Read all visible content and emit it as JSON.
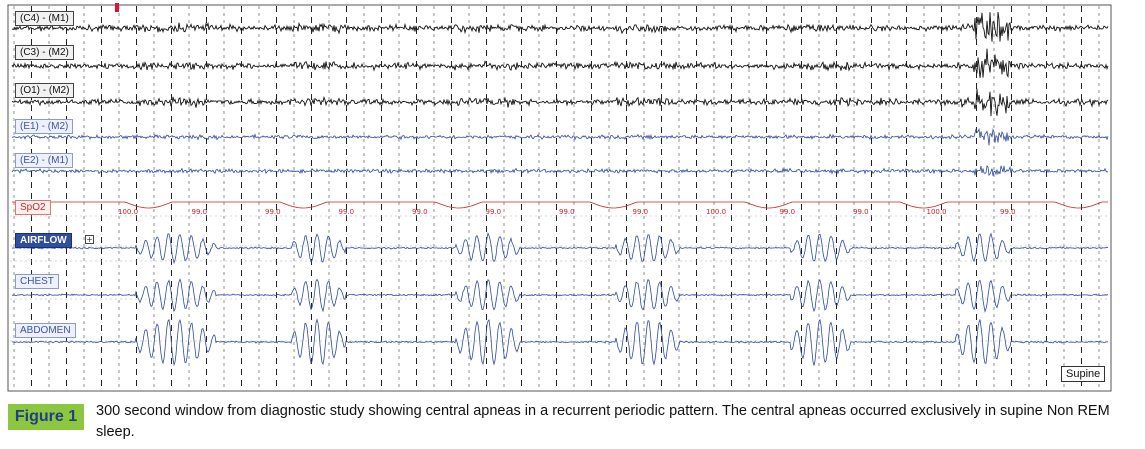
{
  "figure": {
    "label": "Figure 1",
    "caption": "300 second window from diagnostic study showing central apneas in a recurrent periodic pattern. The central apneas occurred exclusively in supine Non REM sleep."
  },
  "channels": [
    {
      "key": "c4",
      "label": "(C4) - (M1)",
      "style": "black",
      "type": "eeg"
    },
    {
      "key": "c3",
      "label": "(C3) - (M2)",
      "style": "black",
      "type": "eeg"
    },
    {
      "key": "o1",
      "label": "(O1) - (M2)",
      "style": "black",
      "type": "eeg"
    },
    {
      "key": "e1",
      "label": "(E1) - (M2)",
      "style": "blue",
      "type": "eog"
    },
    {
      "key": "e2",
      "label": "(E2) - (M1)",
      "style": "blue",
      "type": "eog"
    },
    {
      "key": "spo2",
      "label": "SpO2",
      "style": "red",
      "type": "spo2"
    },
    {
      "key": "airflow",
      "label": "AIRFLOW",
      "style": "dark",
      "type": "resp"
    },
    {
      "key": "chest",
      "label": "CHEST",
      "style": "blue",
      "type": "resp"
    },
    {
      "key": "abdomen",
      "label": "ABDOMEN",
      "style": "blue",
      "type": "resp"
    }
  ],
  "spo2_readings": [
    "100.0",
    "99.0",
    "99.0",
    "99.0",
    "99.0",
    "99.0",
    "99.0",
    "99.0",
    "100.0",
    "99.0",
    "99.0",
    "100.0",
    "99.0"
  ],
  "airflow_expand_symbol": "+",
  "body_position": "Supine",
  "colors": {
    "eeg": "#111111",
    "eog": "#2f4aa0",
    "spo2": "#cc2222",
    "resp": "#2f4aa0",
    "figure_badge": "#8dc63f",
    "figure_label": "#1f3f86"
  }
}
